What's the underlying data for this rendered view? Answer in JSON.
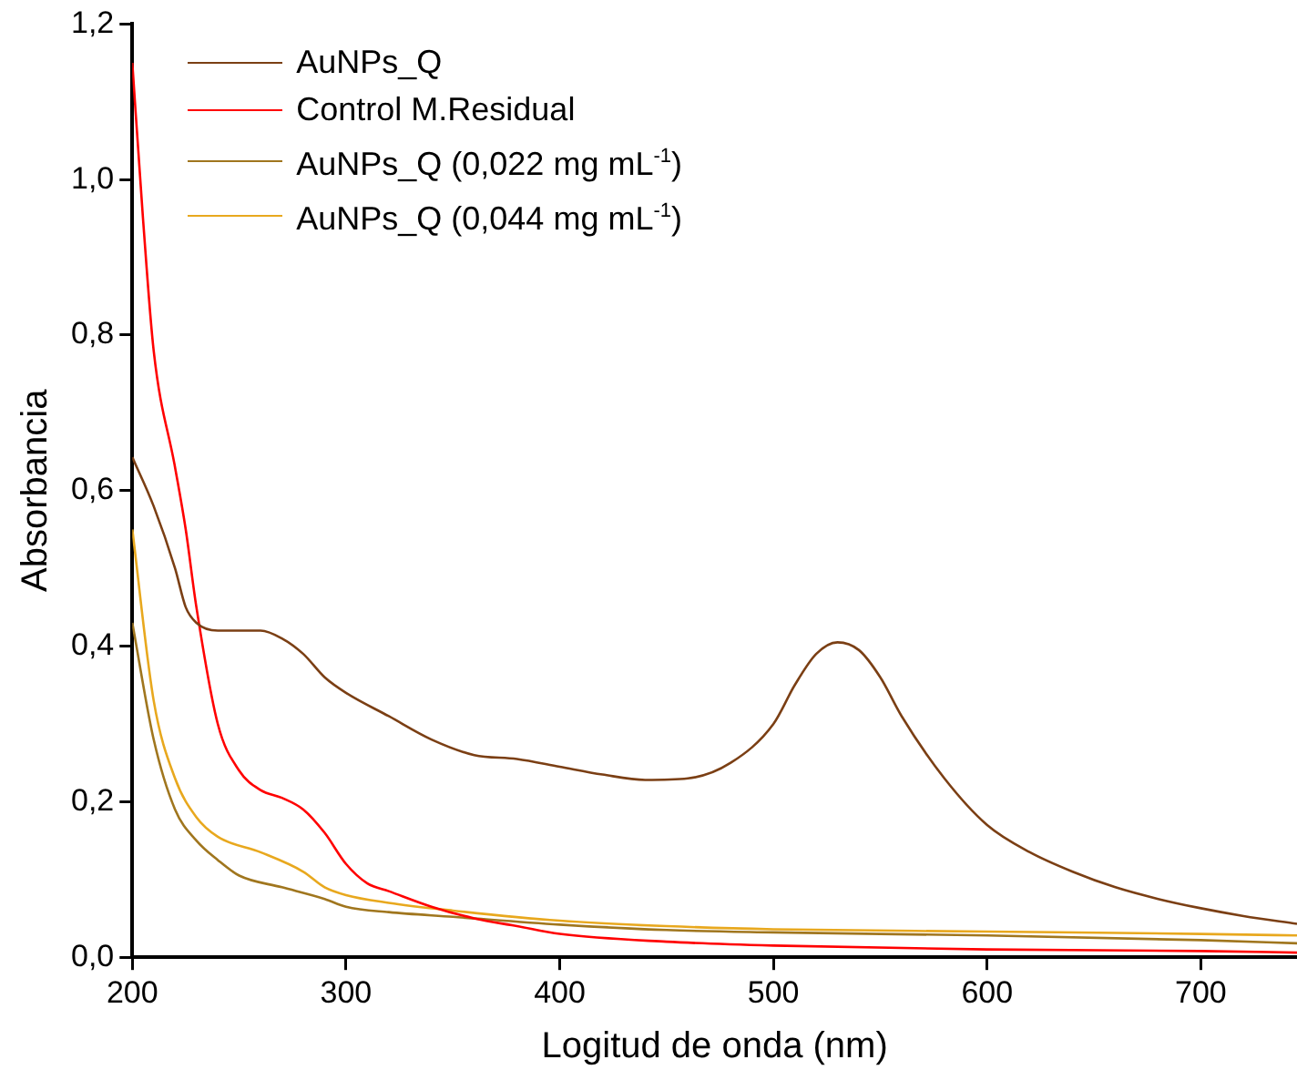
{
  "chart_data": {
    "type": "line",
    "xlabel": "Logitud de onda (nm)",
    "ylabel": "Absorbancia",
    "xlim": [
      200,
      745
    ],
    "xticks": [
      200,
      300,
      400,
      500,
      600,
      700
    ],
    "ylim": [
      0,
      1.2
    ],
    "yticks": [
      {
        "value": 0,
        "label": "0,0"
      },
      {
        "value": 0.2,
        "label": "0,2"
      },
      {
        "value": 0.4,
        "label": "0,4"
      },
      {
        "value": 0.6,
        "label": "0,6"
      },
      {
        "value": 0.8,
        "label": "0,8"
      },
      {
        "value": 1,
        "label": "1,0"
      },
      {
        "value": 1.2,
        "label": "1,2"
      }
    ],
    "grid": false,
    "legend": "top left",
    "marker": "none",
    "line_style": "solid",
    "series": [
      {
        "name": "AuNPs_Q",
        "color": "#7b3f14",
        "x": [
          200,
          210,
          220,
          225,
          230,
          240,
          250,
          260,
          270,
          280,
          290,
          300,
          320,
          340,
          360,
          380,
          400,
          420,
          440,
          460,
          480,
          500,
          510,
          520,
          530,
          540,
          550,
          560,
          580,
          600,
          620,
          640,
          660,
          680,
          700,
          720,
          745
        ],
        "values": [
          0.643,
          0.58,
          0.5,
          0.45,
          0.43,
          0.42,
          0.42,
          0.42,
          0.41,
          0.39,
          0.36,
          0.34,
          0.31,
          0.28,
          0.26,
          0.255,
          0.245,
          0.235,
          0.228,
          0.23,
          0.25,
          0.3,
          0.35,
          0.39,
          0.405,
          0.395,
          0.36,
          0.31,
          0.23,
          0.17,
          0.135,
          0.11,
          0.09,
          0.075,
          0.063,
          0.053,
          0.043
        ]
      },
      {
        "name": "Control M.Residual",
        "color": "#ff0000",
        "x": [
          200,
          205,
          210,
          220,
          225,
          230,
          240,
          250,
          260,
          270,
          280,
          290,
          300,
          310,
          320,
          340,
          360,
          380,
          400,
          450,
          500,
          600,
          700,
          745
        ],
        "values": [
          1.15,
          0.95,
          0.78,
          0.63,
          0.55,
          0.45,
          0.3,
          0.24,
          0.215,
          0.205,
          0.19,
          0.16,
          0.12,
          0.095,
          0.085,
          0.065,
          0.05,
          0.04,
          0.03,
          0.02,
          0.015,
          0.01,
          0.008,
          0.006
        ]
      },
      {
        "name": "AuNPs_Q (0,022 mg mL$^{-1}$)",
        "color": "#a0761e",
        "x": [
          200,
          210,
          220,
          230,
          240,
          250,
          270,
          290,
          300,
          320,
          350,
          400,
          450,
          500,
          600,
          700,
          745
        ],
        "values": [
          0.43,
          0.28,
          0.19,
          0.15,
          0.125,
          0.105,
          0.09,
          0.075,
          0.065,
          0.058,
          0.052,
          0.042,
          0.035,
          0.032,
          0.028,
          0.022,
          0.018
        ]
      },
      {
        "name": "AuNPs_Q (0,044 mg mL$^{-1}$)",
        "color": "#e8a81e",
        "x": [
          200,
          210,
          220,
          230,
          240,
          260,
          280,
          290,
          300,
          320,
          350,
          400,
          450,
          500,
          600,
          700,
          745
        ],
        "values": [
          0.55,
          0.33,
          0.23,
          0.18,
          0.155,
          0.135,
          0.11,
          0.09,
          0.08,
          0.07,
          0.06,
          0.047,
          0.04,
          0.036,
          0.033,
          0.03,
          0.028
        ]
      }
    ]
  }
}
